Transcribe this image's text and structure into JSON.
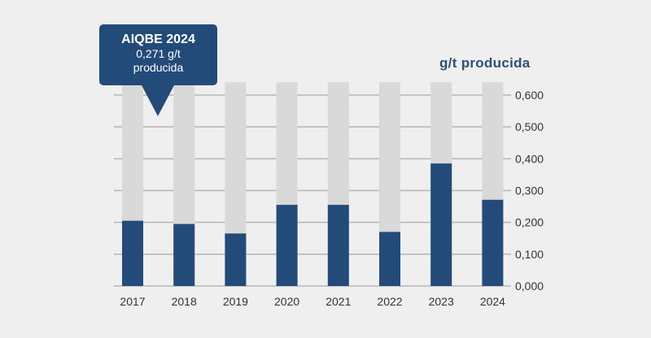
{
  "callout": {
    "title": "AIQBE 2024",
    "line1": "0,271 g/t",
    "line2": "producida"
  },
  "colors": {
    "background": "#efefef",
    "bar_value": "#234b7a",
    "bar_track": "#d9d9d9",
    "grid": "#b5b5b5",
    "text": "#333333",
    "unit_label": "#2e4f78"
  },
  "chart_data": {
    "type": "bar",
    "title": "",
    "xlabel": "",
    "ylabel": "g/t producida",
    "categories": [
      "2017",
      "2018",
      "2019",
      "2020",
      "2021",
      "2022",
      "2023",
      "2024"
    ],
    "series": [
      {
        "values": [
          0.205,
          0.195,
          0.165,
          0.255,
          0.255,
          0.17,
          0.385,
          0.271
        ]
      }
    ],
    "background_track_max": 0.64,
    "ylim": [
      0,
      0.6
    ],
    "yticks": [
      0,
      0.1,
      0.2,
      0.3,
      0.4,
      0.5,
      0.6
    ],
    "ytick_labels": [
      "0,000",
      "0,100",
      "0,200",
      "0,300",
      "0,400",
      "0,500",
      "0,600"
    ],
    "y_axis_side": "right",
    "grid": true,
    "legend": "none"
  }
}
